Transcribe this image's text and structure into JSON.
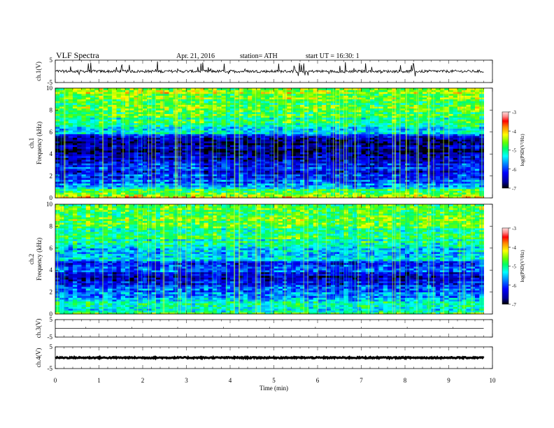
{
  "header": {
    "title": "VLF Spectra",
    "date": "Apr. 21, 2016",
    "station": "station= ATH",
    "start": "start  UT  =   16:30: 1"
  },
  "colors": {
    "spectrogram_scale": [
      "#000000",
      "#000088",
      "#0000ff",
      "#0066ff",
      "#00ccff",
      "#00ff99",
      "#33ff00",
      "#99ff00",
      "#ffff00",
      "#ff9900",
      "#ff0000",
      "#ff9999",
      "#ffdddd"
    ],
    "trace": "#000000",
    "frame": "#000000"
  },
  "chart_data": [
    {
      "type": "line",
      "name": "ch1-voltage",
      "ylabel": "ch.1(V)",
      "ylim": [
        -5,
        5
      ],
      "yticks": [
        "5",
        "-5"
      ],
      "xlim": [
        0,
        10
      ],
      "data_span": [
        0,
        9.8
      ],
      "baseline": 0,
      "noise_amplitude": 0.6,
      "spike_amplitude": 3.5
    },
    {
      "type": "heatmap",
      "name": "ch1-spectrogram",
      "ylabel": "ch.1\nFrequency (kHz)",
      "ylabel_lines": [
        "ch.1",
        "Frequency (kHz)"
      ],
      "ylim": [
        0,
        10
      ],
      "yticks": [
        "0",
        "2",
        "4",
        "6",
        "8",
        "10"
      ],
      "xlim": [
        0,
        10
      ],
      "data_span": [
        0,
        9.8
      ],
      "colorbar": {
        "label": "log(PSD(V²/Hz)",
        "range": [
          -7,
          -3
        ],
        "ticks": [
          "-3",
          "-4",
          "-5",
          "-6",
          "-7"
        ]
      },
      "profile": [
        {
          "f": 0.0,
          "v": -4.2
        },
        {
          "f": 0.5,
          "v": -4.6
        },
        {
          "f": 1.0,
          "v": -5.4
        },
        {
          "f": 1.5,
          "v": -5.9
        },
        {
          "f": 2.0,
          "v": -6.1
        },
        {
          "f": 2.5,
          "v": -6.2
        },
        {
          "f": 3.0,
          "v": -6.0
        },
        {
          "f": 3.5,
          "v": -6.5
        },
        {
          "f": 4.0,
          "v": -6.6
        },
        {
          "f": 4.5,
          "v": -6.7
        },
        {
          "f": 5.0,
          "v": -6.6
        },
        {
          "f": 5.5,
          "v": -6.3
        },
        {
          "f": 6.0,
          "v": -5.4
        },
        {
          "f": 7.0,
          "v": -5.0
        },
        {
          "f": 8.0,
          "v": -4.8
        },
        {
          "f": 9.0,
          "v": -4.6
        },
        {
          "f": 10.0,
          "v": -4.5
        }
      ]
    },
    {
      "type": "heatmap",
      "name": "ch2-spectrogram",
      "ylabel": "ch.2\nFrequency (kHz)",
      "ylabel_lines": [
        "ch.2",
        "Frequency (kHz)"
      ],
      "ylim": [
        0,
        10
      ],
      "yticks": [
        "0",
        "2",
        "4",
        "6",
        "8",
        "10"
      ],
      "xlim": [
        0,
        10
      ],
      "data_span": [
        0,
        9.8
      ],
      "colorbar": {
        "label": "log(PSD(V²/Hz)",
        "range": [
          -7,
          -3
        ],
        "ticks": [
          "-3",
          "-4",
          "-5",
          "-6",
          "-7"
        ]
      },
      "profile": [
        {
          "f": 0.0,
          "v": -4.8
        },
        {
          "f": 0.5,
          "v": -5.2
        },
        {
          "f": 1.0,
          "v": -4.9
        },
        {
          "f": 1.5,
          "v": -5.8
        },
        {
          "f": 2.0,
          "v": -5.9
        },
        {
          "f": 2.5,
          "v": -6.0
        },
        {
          "f": 3.0,
          "v": -6.3
        },
        {
          "f": 3.5,
          "v": -6.5
        },
        {
          "f": 4.0,
          "v": -5.9
        },
        {
          "f": 4.5,
          "v": -6.3
        },
        {
          "f": 5.0,
          "v": -5.5
        },
        {
          "f": 5.5,
          "v": -5.6
        },
        {
          "f": 6.0,
          "v": -5.4
        },
        {
          "f": 7.0,
          "v": -5.0
        },
        {
          "f": 8.0,
          "v": -4.9
        },
        {
          "f": 9.0,
          "v": -4.7
        },
        {
          "f": 10.0,
          "v": -4.6
        }
      ]
    },
    {
      "type": "line",
      "name": "ch3-voltage",
      "ylabel": "ch.3(V)",
      "ylim": [
        -5,
        5
      ],
      "yticks": [
        "5",
        "-5"
      ],
      "xlim": [
        0,
        10
      ],
      "data_span": [
        0,
        9.8
      ],
      "baseline": 0,
      "noise_amplitude": 0,
      "spike_amplitude": 0
    },
    {
      "type": "line",
      "name": "ch4-voltage",
      "ylabel": "ch.4(V)",
      "ylim": [
        -5,
        5
      ],
      "yticks": [
        "5",
        "-5"
      ],
      "xlim": [
        0,
        10
      ],
      "data_span": [
        0,
        9.8
      ],
      "baseline": 0,
      "noise_amplitude": 0.3,
      "spike_amplitude": 0
    }
  ],
  "x_axis": {
    "label": "Time (min)",
    "ticks": [
      "0",
      "1",
      "2",
      "3",
      "4",
      "5",
      "6",
      "7",
      "8",
      "9",
      "10"
    ]
  }
}
